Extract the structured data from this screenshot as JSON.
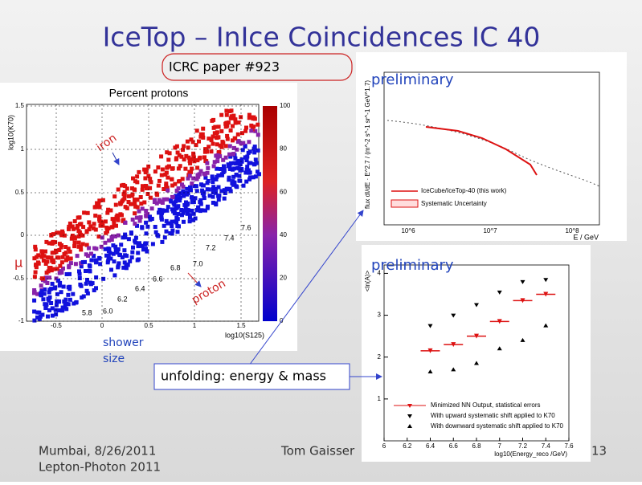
{
  "slide": {
    "title": "IceTop – InIce Coincidences IC 40",
    "paper_note": "ICRC paper #923",
    "unfolding_note": "unfolding: energy & mass",
    "footer": {
      "left_line1": "Mumbai, 8/26/2011",
      "left_line2": "Lepton-Photon 2011",
      "center": "Tom Gaisser",
      "page": "13"
    },
    "left_plot": {
      "title": "Percent protons",
      "y_label": "log10(K70)",
      "x_label": "log10(S125)",
      "yticks": [
        1.5,
        1,
        0.5,
        0,
        -0.5,
        -1
      ],
      "xticks": [
        -0.5,
        0,
        0.5,
        1,
        1.5
      ],
      "colorbar_ticks": [
        100,
        80,
        60,
        40,
        20,
        0
      ],
      "iron_label": "iron",
      "proton_label": "proton",
      "energy_labels": [
        "5.8",
        "6.0",
        "6.2",
        "6.4",
        "6.6",
        "6.8",
        "7.0",
        "7.2",
        "7.4",
        "7.6"
      ],
      "muon_label": "μ",
      "shower_label_1": "shower",
      "shower_label_2": "size"
    },
    "top_right_plot": {
      "preliminary": "preliminary",
      "y_label": "flux dI/dE · E^2.7 / (m^-2 s^-1 sr^-1 GeV^1.7)",
      "x_label": "E / GeV",
      "xtick_labels": [
        "10^6",
        "10^7",
        "10^8"
      ],
      "legend": [
        "IceCube/IceTop-40 (this work)",
        "Systematic Uncertainty"
      ]
    },
    "bottom_right_plot": {
      "preliminary": "preliminary",
      "y_label": "<ln(A)>",
      "x_label": "log10(Energy_reco /GeV)",
      "xlim": [
        6,
        7.6
      ],
      "ylim": [
        0,
        4.2
      ],
      "xticks": [
        6,
        6.2,
        6.4,
        6.6,
        6.8,
        7,
        7.2,
        7.4,
        7.6
      ],
      "yticks": [
        1,
        2,
        3,
        4
      ],
      "x": [
        6.4,
        6.6,
        6.8,
        7,
        7.2,
        7.4
      ],
      "series": [
        {
          "name": "Minimized NN Output, statistical errors",
          "color": "#dd1111",
          "values": [
            2.15,
            2.3,
            2.5,
            2.85,
            3.35,
            3.5
          ]
        },
        {
          "name": "With upward systematic shift applied to K70",
          "color": "#000000",
          "values": [
            2.75,
            3.0,
            3.25,
            3.55,
            3.8,
            3.85
          ]
        },
        {
          "name": "With downward systematic shift applied to K70",
          "color": "#000000",
          "values": [
            1.65,
            1.7,
            1.85,
            2.2,
            2.4,
            2.75
          ]
        }
      ]
    }
  }
}
